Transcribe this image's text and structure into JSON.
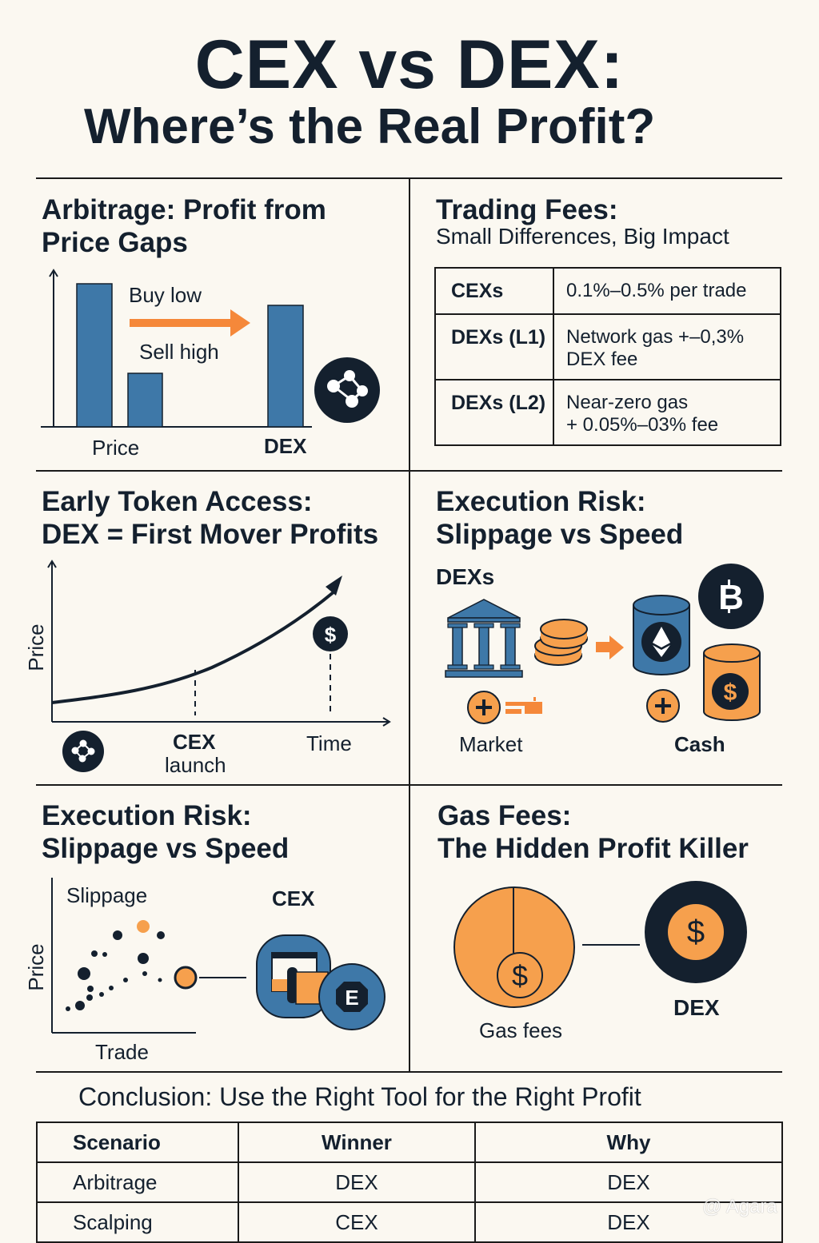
{
  "header": {
    "title": "CEX vs DEX:",
    "subtitle": "Where’s the Real Profit?"
  },
  "colors": {
    "background": "#fbf8f1",
    "ink": "#14202e",
    "blue": "#3e78a8",
    "orange": "#f6a04d",
    "arrow_orange": "#f5883a"
  },
  "sections": {
    "arbitrage": {
      "title_line1": "Arbitrage: Profit from",
      "title_line2": "Price Gaps",
      "buy_label": "Buy low",
      "sell_label": "Sell high",
      "x_label_left": "Price",
      "x_label_right": "DEX",
      "icon": "network-nodes-icon"
    },
    "trading_fees": {
      "title": "Trading Fees:",
      "subtitle": "Small Differences, Big Impact",
      "rows": [
        {
          "venue": "CEXs",
          "fee_line1": "0.1%–0.5% per trade",
          "fee_line2": ""
        },
        {
          "venue": "DEXs (L1)",
          "fee_line1": "Network gas +–0,3%",
          "fee_line2": "DEX fee"
        },
        {
          "venue": "DEXs (L2)",
          "fee_line1": "Near-zero gas",
          "fee_line2": "+ 0.05%–03% fee"
        }
      ]
    },
    "early_access": {
      "title_line1": "Early Token Access:",
      "title_line2": "DEX = First Mover Profits",
      "y_label": "Price",
      "x_label": "Time",
      "marker_label_line1": "CEX",
      "marker_label_line2": "launch",
      "icons": [
        "network-nodes-icon",
        "dollar-coin-icon"
      ]
    },
    "execution_risk_dex": {
      "title_line1": "Execution Risk:",
      "title_line2": "Slippage vs Speed",
      "group_label": "DEXs",
      "left_label": "Market",
      "right_label": "Cash",
      "icons": [
        "bank-icon",
        "coin-stack-icon",
        "arrow-right-icon",
        "ethereum-can-icon",
        "bitcoin-icon",
        "dollar-can-icon",
        "plus-icon"
      ]
    },
    "execution_risk_cex": {
      "title_line1": "Execution Risk:",
      "title_line2": "Slippage vs Speed",
      "scatter_label": "Slippage",
      "y_label": "Price",
      "x_label": "Trade",
      "cex_label": "CEX",
      "icons": [
        "exchange-app-icon",
        "e-coin-icon"
      ]
    },
    "gas_fees": {
      "title_line1": "Gas Fees:",
      "title_line2": "The Hidden Profit Killer",
      "left_label": "Gas fees",
      "right_label": "DEX",
      "icons": [
        "gas-fee-pie-icon",
        "dollar-coin-icon"
      ]
    }
  },
  "conclusion": {
    "title": "Conclusion: Use the Right Tool for the Right Profit",
    "headers": [
      "Scenario",
      "Winner",
      "Why"
    ],
    "rows": [
      [
        "Arbitrage",
        "DEX",
        "DEX"
      ],
      [
        "Scalping",
        "CEX",
        "DEX"
      ]
    ]
  },
  "watermark": "@ Agara"
}
